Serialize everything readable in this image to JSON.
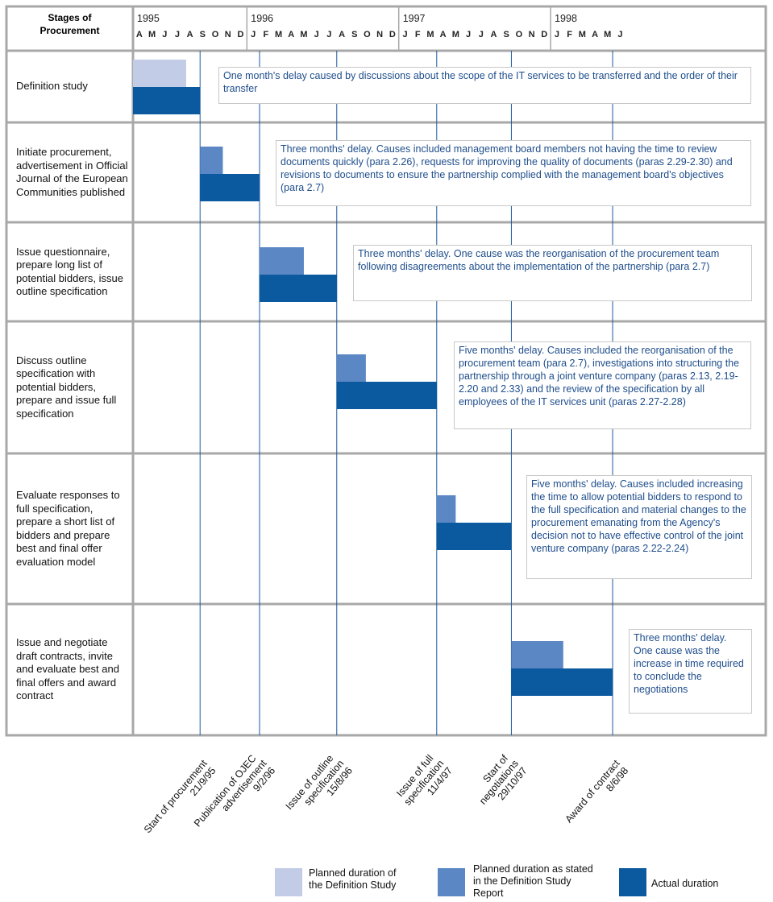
{
  "header": {
    "stage_title": "Stages of Procurement"
  },
  "chart_data": {
    "type": "gantt",
    "categories": [
      "Definition study",
      "Initiate procurement, advertisement in Official Journal of the European Communities published",
      "Issue questionnaire, prepare long list of potential bidders, issue outline specification",
      "Discuss outline specification with potential bidders, prepare and issue full specification",
      "Evaluate responses to full specification, prepare a short list of bidders and prepare best and final offer evaluation model",
      "Issue and negotiate draft contracts, invite and evaluate best and final offers and award contract"
    ],
    "notes": [
      "One month's delay caused by discussions about the scope of the IT services to be transferred and the order of their transfer",
      "Three months' delay. Causes included management board members not having the time to review documents quickly (para 2.26), requests for improving the quality of documents (paras 2.29-2.30) and revisions to documents to ensure the partnership complied with the management board's objectives (para 2.7)",
      "Three months' delay. One cause was the reorganisation of the procurement team following disagreements about the implementation of the partnership (para 2.7)",
      "Five months' delay. Causes included the reorganisation of the procurement team (para 2.7), investigations into structuring the partnership through a joint venture company (paras 2.13, 2.19-2.20 and 2.33) and the review of the specification by all employees of the IT services unit (paras 2.27-2.28)",
      "Five months' delay. Causes included increasing the time to allow potential bidders to respond to the full specification and material changes to the procurement emanating from the Agency's decision not to have effective control of the joint venture company (paras 2.22-2.24)",
      "Three months' delay. One cause was the increase in time required to conclude the negotiations"
    ],
    "years": [
      "1995",
      "1996",
      "1997",
      "1998"
    ],
    "months": [
      "A",
      "M",
      "J",
      "J",
      "A",
      "S",
      "O",
      "N",
      "D",
      "J",
      "F",
      "M",
      "A",
      "M",
      "J",
      "J",
      "A",
      "S",
      "O",
      "N",
      "D",
      "J",
      "F",
      "M",
      "A",
      "M",
      "J",
      "J",
      "A",
      "S",
      "O",
      "N",
      "D",
      "J",
      "F",
      "M",
      "A",
      "M",
      "J"
    ],
    "xlim": [
      0,
      50
    ],
    "series": [
      {
        "name": "Planned duration of the Definition Study",
        "color": "#c3cce6",
        "start": [
          0,
          null,
          null,
          null,
          null,
          null
        ],
        "end": [
          4.2,
          null,
          null,
          null,
          null,
          null
        ]
      },
      {
        "name": "Planned duration as stated in the Definition Study Report",
        "color": "#5b87c5",
        "start": [
          null,
          5.3,
          10.0,
          16.1,
          24.0,
          29.9
        ],
        "end": [
          null,
          7.1,
          13.5,
          18.4,
          25.5,
          34.0
        ]
      },
      {
        "name": "Actual duration",
        "color": "#0b5aa0",
        "start": [
          0,
          5.3,
          10.0,
          16.1,
          24.0,
          29.9
        ],
        "end": [
          5.3,
          10.0,
          16.1,
          24.0,
          29.9,
          37.9
        ]
      }
    ],
    "milestones": {
      "labels": [
        "Start of procurement",
        "Publication of OJEC advertisement",
        "Issue of outline specification",
        "Issue of full specification",
        "Start of negotiations",
        "Award of contract"
      ],
      "dates": [
        "21/9/95",
        "9/2/96",
        "15/8/96",
        "11/4/97",
        "29/10/97",
        "8/6/98"
      ],
      "x": [
        5.3,
        10.0,
        16.1,
        24.0,
        29.9,
        37.9
      ]
    }
  }
}
